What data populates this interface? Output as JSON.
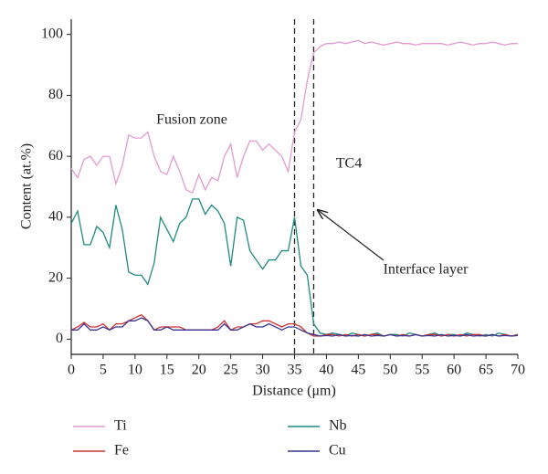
{
  "chart_data": {
    "type": "line",
    "xlabel": "Distance (μm)",
    "ylabel": "Content (at.%)",
    "x": [
      0,
      1,
      2,
      3,
      4,
      5,
      6,
      7,
      8,
      9,
      10,
      11,
      12,
      13,
      14,
      15,
      16,
      17,
      18,
      19,
      20,
      21,
      22,
      23,
      24,
      25,
      26,
      27,
      28,
      29,
      30,
      31,
      32,
      33,
      34,
      35,
      36,
      37,
      38,
      39,
      40,
      41,
      42,
      43,
      44,
      45,
      46,
      47,
      48,
      49,
      50,
      51,
      52,
      53,
      54,
      55,
      56,
      57,
      58,
      59,
      60,
      61,
      62,
      63,
      64,
      65,
      66,
      67,
      68,
      69,
      70
    ],
    "series": [
      {
        "name": "Ti",
        "color": "#e29bd0",
        "values": [
          56,
          53,
          59,
          60,
          57,
          60,
          60,
          51,
          57,
          67,
          66,
          66,
          68,
          60,
          55,
          54,
          60,
          55,
          49,
          48,
          54,
          49,
          53,
          52,
          60,
          64,
          53,
          60,
          65,
          65,
          62,
          64,
          62,
          60,
          55,
          68,
          72,
          85,
          94,
          96,
          97,
          97,
          97.5,
          97,
          97.5,
          98,
          97,
          97.5,
          97,
          96.5,
          97,
          97.5,
          97,
          97,
          96.5,
          97,
          97,
          97,
          97,
          96.5,
          97,
          97.5,
          97,
          96.5,
          97,
          97,
          97.5,
          97,
          96.5,
          97,
          97
        ]
      },
      {
        "name": "Nb",
        "color": "#1f8a80",
        "values": [
          38,
          42,
          31,
          31,
          37,
          35,
          30,
          44,
          36,
          22,
          21,
          21,
          18,
          25,
          40,
          36,
          32,
          38,
          40,
          46,
          46,
          41,
          44,
          42,
          38,
          24,
          40,
          39,
          29,
          26,
          23,
          26,
          26,
          29,
          29,
          40,
          24,
          21,
          5,
          2,
          1.5,
          2,
          1.5,
          1,
          2,
          1.5,
          1,
          1.5,
          2,
          1,
          1.5,
          1.5,
          1,
          2,
          1.5,
          1,
          1.5,
          2,
          1,
          1.5,
          1.5,
          1,
          2,
          1.5,
          1,
          1.5,
          1,
          2,
          1.5,
          1,
          1.5
        ]
      },
      {
        "name": "Fe",
        "color": "#d03030",
        "values": [
          3,
          4,
          5.5,
          4,
          4,
          5,
          3,
          5,
          5,
          6,
          7,
          8,
          6,
          3,
          4,
          4,
          4,
          4,
          3,
          3,
          3,
          3,
          3,
          4,
          6,
          3,
          4,
          4,
          5,
          5,
          6,
          6,
          5,
          4,
          5,
          5,
          4,
          2,
          1,
          1,
          1.5,
          1.5,
          1,
          1.5,
          1,
          1.5,
          1,
          1.5,
          1.5,
          1,
          1.5,
          1,
          1.5,
          1,
          1.5,
          1,
          1.5,
          1.5,
          1,
          1.5,
          1,
          1.5,
          1,
          1.5,
          1.5,
          1,
          1.5,
          1,
          1.5,
          1,
          1.5
        ]
      },
      {
        "name": "Cu",
        "color": "#3a3590",
        "values": [
          3,
          3,
          5,
          3,
          3,
          4,
          3,
          4,
          4,
          6,
          6,
          7,
          6,
          3,
          3,
          4,
          3,
          3,
          3,
          3,
          3,
          3,
          3,
          3,
          5,
          3,
          3,
          4,
          5,
          4,
          4,
          5,
          4,
          3,
          4,
          4,
          3,
          2,
          1.5,
          1,
          1.2,
          1,
          1.5,
          1,
          1.2,
          1,
          1.5,
          1,
          1.2,
          1,
          1.5,
          1,
          1.2,
          1,
          1.5,
          1,
          1.2,
          1,
          1.5,
          1,
          1.2,
          1,
          1.5,
          1,
          1.2,
          1,
          1.5,
          1,
          1.2,
          1,
          1.2
        ]
      }
    ],
    "xlim": [
      0,
      70
    ],
    "xticks": [
      0,
      5,
      10,
      15,
      20,
      25,
      30,
      35,
      40,
      45,
      50,
      55,
      60,
      65,
      70
    ],
    "ylim": [
      -5,
      105
    ],
    "yticks": [
      0,
      20,
      40,
      60,
      80,
      100
    ],
    "vlines": [
      35,
      38
    ],
    "annotations": [
      "Fusion zone",
      "TC4",
      "Interface layer"
    ]
  }
}
